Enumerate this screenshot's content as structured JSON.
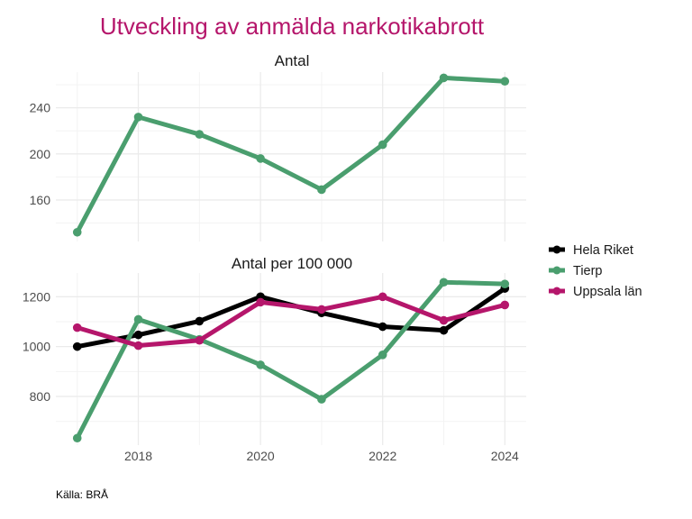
{
  "chart_data": {
    "type": "line",
    "title": "Utveckling av anmälda narkotikabrott",
    "caption": "Källa: BRÅ",
    "x": [
      2017,
      2018,
      2019,
      2020,
      2021,
      2022,
      2023,
      2024
    ],
    "x_ticks": [
      "2018",
      "2020",
      "2022",
      "2024"
    ],
    "x_tick_values": [
      2018,
      2020,
      2022,
      2024
    ],
    "xlim": [
      2016.65,
      2024.35
    ],
    "grid": true,
    "legend_position": "right",
    "legend": [
      "Hela Riket",
      "Tierp",
      "Uppsala län"
    ],
    "colors": {
      "Hela Riket": "#000000",
      "Tierp": "#4a9e6e",
      "Uppsala län": "#b5166b"
    },
    "panels": [
      {
        "title": "Antal",
        "ylim": [
          124,
          271
        ],
        "y_ticks": [
          "160",
          "200",
          "240"
        ],
        "y_tick_values": [
          160,
          200,
          240
        ],
        "y_minor": [
          140,
          180,
          220,
          260
        ],
        "series": [
          {
            "name": "Tierp",
            "values": [
              132,
              232,
              217,
              196,
              169,
              208,
              266,
              263
            ]
          }
        ]
      },
      {
        "title": "Antal per 100 000",
        "ylim": [
          605,
          1295
        ],
        "y_ticks": [
          "800",
          "1000",
          "1200"
        ],
        "y_tick_values": [
          800,
          1000,
          1200
        ],
        "y_minor": [
          700,
          900,
          1100
        ],
        "series": [
          {
            "name": "Hela Riket",
            "values": [
              1000,
              1047,
              1102,
              1200,
              1135,
              1080,
              1065,
              1233
            ]
          },
          {
            "name": "Tierp",
            "values": [
              633,
              1109,
              1029,
              927,
              789,
              967,
              1258,
              1251
            ]
          },
          {
            "name": "Uppsala län",
            "values": [
              1076,
              1004,
              1025,
              1178,
              1149,
              1200,
              1105,
              1167
            ]
          }
        ]
      }
    ]
  }
}
